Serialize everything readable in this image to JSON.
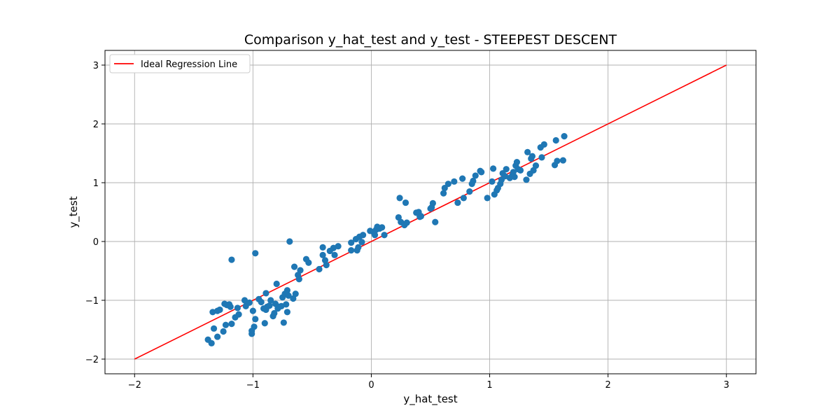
{
  "chart_data": {
    "type": "scatter",
    "title": "Comparison y_hat_test and y_test - STEEPEST DESCENT",
    "xlabel": "y_hat_test",
    "ylabel": "y_test",
    "xlim": [
      -2.25,
      3.25
    ],
    "ylim": [
      -2.25,
      3.25
    ],
    "xticks": [
      -2,
      -1,
      0,
      1,
      2,
      3
    ],
    "yticks": [
      -2,
      -1,
      0,
      1,
      2,
      3
    ],
    "xtick_labels": [
      "−2",
      "−1",
      "0",
      "1",
      "2",
      "3"
    ],
    "ytick_labels": [
      "−2",
      "−1",
      "0",
      "1",
      "2",
      "3"
    ],
    "grid": true,
    "legend": {
      "position": "top-left",
      "entries": [
        "Ideal Regression Line"
      ]
    },
    "line": {
      "name": "Ideal Regression Line",
      "color": "#ff0000",
      "x": [
        -2,
        3
      ],
      "y": [
        -2,
        3
      ]
    },
    "scatter_color": "#1f77b4",
    "points": [
      [
        -1.38,
        -1.67
      ],
      [
        -1.35,
        -1.73
      ],
      [
        -1.34,
        -1.2
      ],
      [
        -1.33,
        -1.48
      ],
      [
        -1.3,
        -1.62
      ],
      [
        -1.3,
        -1.18
      ],
      [
        -1.28,
        -1.16
      ],
      [
        -1.25,
        -1.53
      ],
      [
        -1.24,
        -1.06
      ],
      [
        -1.23,
        -1.42
      ],
      [
        -1.22,
        -1.08
      ],
      [
        -1.2,
        -1.07
      ],
      [
        -1.19,
        -1.11
      ],
      [
        -1.18,
        -1.4
      ],
      [
        -1.18,
        -0.31
      ],
      [
        -1.15,
        -1.29
      ],
      [
        -1.13,
        -1.13
      ],
      [
        -1.12,
        -1.24
      ],
      [
        -1.07,
        -1.0
      ],
      [
        -1.06,
        -1.1
      ],
      [
        -1.03,
        -1.04
      ],
      [
        -1.01,
        -1.52
      ],
      [
        -1.01,
        -1.57
      ],
      [
        -1.0,
        -1.18
      ],
      [
        -0.99,
        -1.45
      ],
      [
        -0.98,
        -1.32
      ],
      [
        -0.98,
        -0.2
      ],
      [
        -0.95,
        -0.98
      ],
      [
        -0.93,
        -1.03
      ],
      [
        -0.91,
        -1.14
      ],
      [
        -0.9,
        -1.39
      ],
      [
        -0.89,
        -1.16
      ],
      [
        -0.89,
        -0.88
      ],
      [
        -0.88,
        -1.11
      ],
      [
        -0.86,
        -1.09
      ],
      [
        -0.85,
        -1.0
      ],
      [
        -0.83,
        -1.27
      ],
      [
        -0.82,
        -1.22
      ],
      [
        -0.81,
        -1.06
      ],
      [
        -0.8,
        -0.72
      ],
      [
        -0.79,
        -1.14
      ],
      [
        -0.78,
        -1.11
      ],
      [
        -0.76,
        -1.1
      ],
      [
        -0.75,
        -0.95
      ],
      [
        -0.74,
        -1.38
      ],
      [
        -0.73,
        -0.89
      ],
      [
        -0.72,
        -1.07
      ],
      [
        -0.71,
        -0.83
      ],
      [
        -0.71,
        -1.2
      ],
      [
        -0.7,
        -0.92
      ],
      [
        -0.69,
        0.0
      ],
      [
        -0.66,
        -0.97
      ],
      [
        -0.65,
        -0.43
      ],
      [
        -0.64,
        -0.89
      ],
      [
        -0.62,
        -0.57
      ],
      [
        -0.61,
        -0.64
      ],
      [
        -0.6,
        -0.49
      ],
      [
        -0.55,
        -0.3
      ],
      [
        -0.53,
        -0.36
      ],
      [
        -0.44,
        -0.47
      ],
      [
        -0.41,
        -0.1
      ],
      [
        -0.41,
        -0.23
      ],
      [
        -0.39,
        -0.32
      ],
      [
        -0.38,
        -0.4
      ],
      [
        -0.35,
        -0.16
      ],
      [
        -0.32,
        -0.11
      ],
      [
        -0.31,
        -0.23
      ],
      [
        -0.28,
        -0.08
      ],
      [
        -0.17,
        -0.15
      ],
      [
        -0.17,
        -0.02
      ],
      [
        -0.13,
        0.04
      ],
      [
        -0.12,
        -0.15
      ],
      [
        -0.11,
        -0.1
      ],
      [
        -0.1,
        0.08
      ],
      [
        -0.08,
        -0.01
      ],
      [
        -0.07,
        0.11
      ],
      [
        -0.01,
        0.18
      ],
      [
        0.02,
        0.16
      ],
      [
        0.03,
        0.11
      ],
      [
        0.04,
        0.2
      ],
      [
        0.05,
        0.25
      ],
      [
        0.07,
        0.22
      ],
      [
        0.09,
        0.24
      ],
      [
        0.11,
        0.11
      ],
      [
        0.23,
        0.41
      ],
      [
        0.24,
        0.74
      ],
      [
        0.25,
        0.33
      ],
      [
        0.28,
        0.28
      ],
      [
        0.29,
        0.66
      ],
      [
        0.3,
        0.32
      ],
      [
        0.38,
        0.49
      ],
      [
        0.4,
        0.5
      ],
      [
        0.41,
        0.42
      ],
      [
        0.42,
        0.43
      ],
      [
        0.5,
        0.56
      ],
      [
        0.51,
        0.58
      ],
      [
        0.52,
        0.65
      ],
      [
        0.54,
        0.33
      ],
      [
        0.61,
        0.82
      ],
      [
        0.62,
        0.91
      ],
      [
        0.65,
        0.98
      ],
      [
        0.7,
        1.02
      ],
      [
        0.73,
        0.66
      ],
      [
        0.77,
        1.07
      ],
      [
        0.78,
        0.74
      ],
      [
        0.83,
        0.85
      ],
      [
        0.85,
        0.98
      ],
      [
        0.86,
        1.03
      ],
      [
        0.88,
        1.12
      ],
      [
        0.92,
        1.2
      ],
      [
        0.93,
        1.18
      ],
      [
        0.98,
        0.74
      ],
      [
        1.02,
        1.02
      ],
      [
        1.03,
        1.24
      ],
      [
        1.04,
        0.8
      ],
      [
        1.06,
        0.87
      ],
      [
        1.07,
        0.91
      ],
      [
        1.09,
        0.98
      ],
      [
        1.1,
        1.05
      ],
      [
        1.11,
        1.16
      ],
      [
        1.13,
        1.11
      ],
      [
        1.14,
        1.23
      ],
      [
        1.17,
        1.08
      ],
      [
        1.19,
        1.12
      ],
      [
        1.2,
        1.18
      ],
      [
        1.21,
        1.1
      ],
      [
        1.22,
        1.29
      ],
      [
        1.23,
        1.35
      ],
      [
        1.24,
        1.23
      ],
      [
        1.26,
        1.21
      ],
      [
        1.31,
        1.05
      ],
      [
        1.32,
        1.52
      ],
      [
        1.34,
        1.15
      ],
      [
        1.35,
        1.41
      ],
      [
        1.36,
        1.45
      ],
      [
        1.37,
        1.21
      ],
      [
        1.39,
        1.29
      ],
      [
        1.43,
        1.6
      ],
      [
        1.44,
        1.43
      ],
      [
        1.46,
        1.65
      ],
      [
        1.55,
        1.3
      ],
      [
        1.56,
        1.72
      ],
      [
        1.57,
        1.37
      ],
      [
        1.62,
        1.38
      ],
      [
        1.63,
        1.79
      ]
    ]
  }
}
